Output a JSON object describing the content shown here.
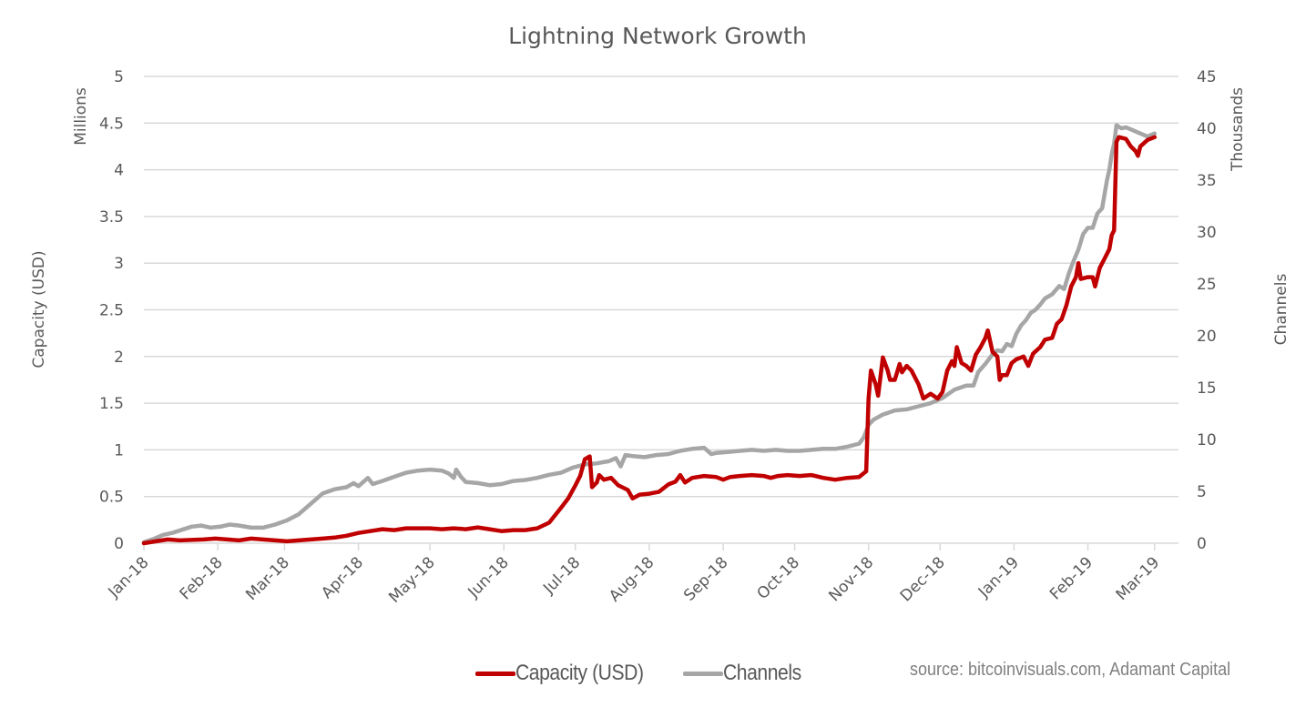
{
  "chart_data": {
    "type": "line",
    "title": "Lightning Network Growth",
    "xlabel": "",
    "x_tick_labels": [
      "Jan-18",
      "Feb-18",
      "Mar-18",
      "Apr-18",
      "May-18",
      "Jun-18",
      "Jul-18",
      "Aug-18",
      "Sep-18",
      "Oct-18",
      "Nov-18",
      "Dec-18",
      "Jan-19",
      "Feb-19",
      "Mar-19"
    ],
    "y_left": {
      "label": "Capacity (USD)",
      "unit_label": "Millions",
      "range": [
        0,
        5
      ],
      "ticks": [
        "0",
        "0.5",
        "1",
        "1.5",
        "2",
        "2.5",
        "3",
        "3.5",
        "4",
        "4.5",
        "5"
      ]
    },
    "y_right": {
      "label": "Channels",
      "unit_label": "Thousands",
      "range": [
        0,
        45
      ],
      "ticks": [
        "0",
        "5",
        "10",
        "15",
        "20",
        "25",
        "30",
        "35",
        "40",
        "45"
      ]
    },
    "grid": true,
    "legend_position": "bottom",
    "source_note": "source: bitcoinvisuals.com, Adamant Capital",
    "x_unit": "days since 2018-01-01",
    "x_range_days": [
      0,
      434
    ],
    "series": [
      {
        "name": "Capacity (USD)",
        "axis": "left",
        "color": "#C00000",
        "unit": "millions USD",
        "points": [
          [
            0,
            0.0
          ],
          [
            5,
            0.02
          ],
          [
            10,
            0.04
          ],
          [
            15,
            0.03
          ],
          [
            25,
            0.04
          ],
          [
            30,
            0.05
          ],
          [
            35,
            0.04
          ],
          [
            40,
            0.03
          ],
          [
            45,
            0.05
          ],
          [
            50,
            0.04
          ],
          [
            55,
            0.03
          ],
          [
            60,
            0.02
          ],
          [
            65,
            0.03
          ],
          [
            70,
            0.04
          ],
          [
            75,
            0.05
          ],
          [
            80,
            0.06
          ],
          [
            85,
            0.08
          ],
          [
            90,
            0.11
          ],
          [
            95,
            0.13
          ],
          [
            100,
            0.15
          ],
          [
            105,
            0.14
          ],
          [
            110,
            0.16
          ],
          [
            115,
            0.16
          ],
          [
            120,
            0.16
          ],
          [
            125,
            0.15
          ],
          [
            130,
            0.16
          ],
          [
            135,
            0.15
          ],
          [
            140,
            0.17
          ],
          [
            145,
            0.15
          ],
          [
            150,
            0.13
          ],
          [
            155,
            0.14
          ],
          [
            160,
            0.14
          ],
          [
            165,
            0.16
          ],
          [
            170,
            0.22
          ],
          [
            175,
            0.38
          ],
          [
            178,
            0.48
          ],
          [
            181,
            0.62
          ],
          [
            183,
            0.72
          ],
          [
            185,
            0.9
          ],
          [
            187,
            0.93
          ],
          [
            188,
            0.6
          ],
          [
            190,
            0.65
          ],
          [
            191,
            0.73
          ],
          [
            193,
            0.68
          ],
          [
            196,
            0.7
          ],
          [
            199,
            0.62
          ],
          [
            203,
            0.57
          ],
          [
            205,
            0.48
          ],
          [
            208,
            0.52
          ],
          [
            212,
            0.53
          ],
          [
            216,
            0.55
          ],
          [
            220,
            0.63
          ],
          [
            223,
            0.66
          ],
          [
            225,
            0.73
          ],
          [
            227,
            0.65
          ],
          [
            230,
            0.7
          ],
          [
            235,
            0.72
          ],
          [
            240,
            0.71
          ],
          [
            243,
            0.68
          ],
          [
            246,
            0.71
          ],
          [
            250,
            0.72
          ],
          [
            255,
            0.73
          ],
          [
            260,
            0.72
          ],
          [
            263,
            0.7
          ],
          [
            266,
            0.72
          ],
          [
            270,
            0.73
          ],
          [
            275,
            0.72
          ],
          [
            280,
            0.73
          ],
          [
            285,
            0.7
          ],
          [
            290,
            0.68
          ],
          [
            295,
            0.7
          ],
          [
            300,
            0.71
          ],
          [
            302,
            0.75
          ],
          [
            303,
            0.77
          ],
          [
            304,
            1.55
          ],
          [
            305,
            1.85
          ],
          [
            307,
            1.7
          ],
          [
            308,
            1.58
          ],
          [
            310,
            1.99
          ],
          [
            312,
            1.85
          ],
          [
            313,
            1.75
          ],
          [
            315,
            1.75
          ],
          [
            317,
            1.92
          ],
          [
            318,
            1.83
          ],
          [
            320,
            1.9
          ],
          [
            322,
            1.85
          ],
          [
            325,
            1.7
          ],
          [
            327,
            1.55
          ],
          [
            330,
            1.6
          ],
          [
            333,
            1.55
          ],
          [
            335,
            1.62
          ],
          [
            337,
            1.85
          ],
          [
            339,
            1.95
          ],
          [
            340,
            1.9
          ],
          [
            341,
            2.1
          ],
          [
            343,
            1.93
          ],
          [
            345,
            1.9
          ],
          [
            347,
            1.85
          ],
          [
            349,
            2.02
          ],
          [
            351,
            2.1
          ],
          [
            353,
            2.2
          ],
          [
            354,
            2.28
          ],
          [
            356,
            2.05
          ],
          [
            358,
            2.0
          ],
          [
            359,
            1.75
          ],
          [
            360,
            1.8
          ],
          [
            362,
            1.8
          ],
          [
            364,
            1.93
          ],
          [
            366,
            1.97
          ],
          [
            369,
            2.0
          ],
          [
            371,
            1.9
          ],
          [
            373,
            2.03
          ],
          [
            376,
            2.1
          ],
          [
            378,
            2.18
          ],
          [
            381,
            2.2
          ],
          [
            383,
            2.35
          ],
          [
            385,
            2.4
          ],
          [
            387,
            2.55
          ],
          [
            389,
            2.75
          ],
          [
            391,
            2.85
          ],
          [
            392,
            3.0
          ],
          [
            393,
            2.83
          ],
          [
            396,
            2.85
          ],
          [
            398,
            2.85
          ],
          [
            399,
            2.75
          ],
          [
            401,
            2.95
          ],
          [
            403,
            3.05
          ],
          [
            405,
            3.15
          ],
          [
            406,
            3.3
          ],
          [
            407,
            3.35
          ],
          [
            408,
            4.3
          ],
          [
            409,
            4.35
          ],
          [
            412,
            4.33
          ],
          [
            414,
            4.25
          ],
          [
            416,
            4.2
          ],
          [
            417,
            4.15
          ],
          [
            418,
            4.25
          ],
          [
            421,
            4.32
          ],
          [
            424,
            4.35
          ]
        ]
      },
      {
        "name": "Channels",
        "axis": "right",
        "color": "#A6A6A6",
        "unit": "thousands",
        "points": [
          [
            0,
            0.1
          ],
          [
            4,
            0.4
          ],
          [
            8,
            0.8
          ],
          [
            12,
            1.0
          ],
          [
            16,
            1.3
          ],
          [
            20,
            1.6
          ],
          [
            24,
            1.7
          ],
          [
            28,
            1.5
          ],
          [
            32,
            1.6
          ],
          [
            36,
            1.8
          ],
          [
            40,
            1.7
          ],
          [
            45,
            1.5
          ],
          [
            50,
            1.5
          ],
          [
            55,
            1.8
          ],
          [
            60,
            2.2
          ],
          [
            65,
            2.8
          ],
          [
            70,
            3.8
          ],
          [
            75,
            4.8
          ],
          [
            80,
            5.2
          ],
          [
            85,
            5.4
          ],
          [
            88,
            5.8
          ],
          [
            90,
            5.5
          ],
          [
            94,
            6.3
          ],
          [
            96,
            5.7
          ],
          [
            100,
            6.0
          ],
          [
            105,
            6.4
          ],
          [
            110,
            6.8
          ],
          [
            115,
            7.0
          ],
          [
            120,
            7.1
          ],
          [
            125,
            7.0
          ],
          [
            128,
            6.7
          ],
          [
            130,
            6.3
          ],
          [
            131,
            7.1
          ],
          [
            133,
            6.4
          ],
          [
            135,
            5.9
          ],
          [
            140,
            5.8
          ],
          [
            145,
            5.6
          ],
          [
            150,
            5.7
          ],
          [
            155,
            6.0
          ],
          [
            160,
            6.1
          ],
          [
            165,
            6.3
          ],
          [
            170,
            6.6
          ],
          [
            175,
            6.8
          ],
          [
            180,
            7.3
          ],
          [
            185,
            7.6
          ],
          [
            190,
            7.7
          ],
          [
            195,
            7.9
          ],
          [
            198,
            8.2
          ],
          [
            200,
            7.4
          ],
          [
            202,
            8.5
          ],
          [
            205,
            8.4
          ],
          [
            210,
            8.3
          ],
          [
            215,
            8.5
          ],
          [
            220,
            8.6
          ],
          [
            225,
            8.9
          ],
          [
            230,
            9.1
          ],
          [
            235,
            9.2
          ],
          [
            238,
            8.6
          ],
          [
            240,
            8.7
          ],
          [
            245,
            8.8
          ],
          [
            250,
            8.9
          ],
          [
            255,
            9.0
          ],
          [
            260,
            8.9
          ],
          [
            265,
            9.0
          ],
          [
            270,
            8.9
          ],
          [
            275,
            8.9
          ],
          [
            280,
            9.0
          ],
          [
            285,
            9.1
          ],
          [
            290,
            9.1
          ],
          [
            295,
            9.3
          ],
          [
            300,
            9.6
          ],
          [
            302,
            10.2
          ],
          [
            304,
            11.4
          ],
          [
            306,
            11.9
          ],
          [
            310,
            12.4
          ],
          [
            315,
            12.8
          ],
          [
            320,
            12.9
          ],
          [
            325,
            13.2
          ],
          [
            330,
            13.5
          ],
          [
            335,
            14.0
          ],
          [
            340,
            14.8
          ],
          [
            345,
            15.2
          ],
          [
            348,
            15.2
          ],
          [
            350,
            16.5
          ],
          [
            353,
            17.3
          ],
          [
            356,
            18.2
          ],
          [
            358,
            18.6
          ],
          [
            360,
            18.5
          ],
          [
            362,
            19.2
          ],
          [
            364,
            19.0
          ],
          [
            366,
            20.2
          ],
          [
            368,
            21.0
          ],
          [
            370,
            21.5
          ],
          [
            372,
            22.2
          ],
          [
            374,
            22.5
          ],
          [
            376,
            23.0
          ],
          [
            378,
            23.6
          ],
          [
            381,
            24.0
          ],
          [
            384,
            24.8
          ],
          [
            386,
            24.5
          ],
          [
            388,
            26.0
          ],
          [
            390,
            27.2
          ],
          [
            392,
            28.3
          ],
          [
            394,
            29.8
          ],
          [
            396,
            30.4
          ],
          [
            398,
            30.4
          ],
          [
            400,
            31.8
          ],
          [
            402,
            32.3
          ],
          [
            404,
            35.0
          ],
          [
            405,
            36.0
          ],
          [
            406,
            37.5
          ],
          [
            407,
            38.5
          ],
          [
            408,
            40.3
          ],
          [
            410,
            40.0
          ],
          [
            412,
            40.1
          ],
          [
            415,
            39.8
          ],
          [
            418,
            39.5
          ],
          [
            421,
            39.2
          ],
          [
            424,
            39.5
          ]
        ]
      }
    ]
  }
}
